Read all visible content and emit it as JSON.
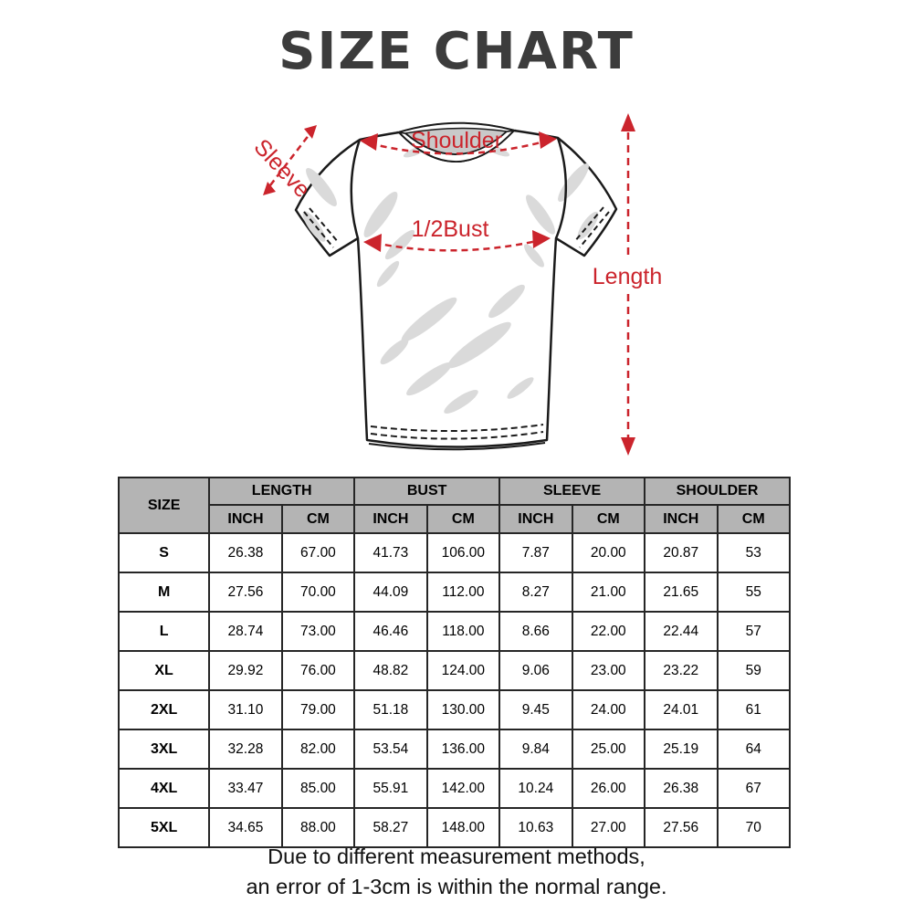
{
  "title": "SIZE CHART",
  "diagram": {
    "sleeve_label": "Sleeve",
    "shoulder_label": "Shoulder",
    "bust_label": "1/2Bust",
    "length_label": "Length"
  },
  "table": {
    "size_header": "SIZE",
    "group_headers": [
      "LENGTH",
      "BUST",
      "SLEEVE",
      "SHOULDER"
    ],
    "unit_headers": [
      "INCH",
      "CM",
      "INCH",
      "CM",
      "INCH",
      "CM",
      "INCH",
      "CM"
    ],
    "rows": [
      {
        "size": "S",
        "values": [
          "26.38",
          "67.00",
          "41.73",
          "106.00",
          "7.87",
          "20.00",
          "20.87",
          "53"
        ]
      },
      {
        "size": "M",
        "values": [
          "27.56",
          "70.00",
          "44.09",
          "112.00",
          "8.27",
          "21.00",
          "21.65",
          "55"
        ]
      },
      {
        "size": "L",
        "values": [
          "28.74",
          "73.00",
          "46.46",
          "118.00",
          "8.66",
          "22.00",
          "22.44",
          "57"
        ]
      },
      {
        "size": "XL",
        "values": [
          "29.92",
          "76.00",
          "48.82",
          "124.00",
          "9.06",
          "23.00",
          "23.22",
          "59"
        ]
      },
      {
        "size": "2XL",
        "values": [
          "31.10",
          "79.00",
          "51.18",
          "130.00",
          "9.45",
          "24.00",
          "24.01",
          "61"
        ]
      },
      {
        "size": "3XL",
        "values": [
          "32.28",
          "82.00",
          "53.54",
          "136.00",
          "9.84",
          "25.00",
          "25.19",
          "64"
        ]
      },
      {
        "size": "4XL",
        "values": [
          "33.47",
          "85.00",
          "55.91",
          "142.00",
          "10.24",
          "26.00",
          "26.38",
          "67"
        ]
      },
      {
        "size": "5XL",
        "values": [
          "34.65",
          "88.00",
          "58.27",
          "148.00",
          "10.63",
          "27.00",
          "27.56",
          "70"
        ]
      }
    ]
  },
  "footer": {
    "line1": "Due to different measurement methods,",
    "line2": "an error of 1-3cm is within the normal range."
  },
  "colors": {
    "accent_red": "#cb242c",
    "header_bg": "#b4b4b4",
    "border": "#262626",
    "title_color": "#3c3c3c",
    "shade_gray": "#dadada"
  },
  "chart_data": {
    "type": "table",
    "title": "SIZE CHART",
    "columns": [
      "SIZE",
      "LENGTH INCH",
      "LENGTH CM",
      "BUST INCH",
      "BUST CM",
      "SLEEVE INCH",
      "SLEEVE CM",
      "SHOULDER INCH",
      "SHOULDER CM"
    ],
    "rows": [
      [
        "S",
        26.38,
        67.0,
        41.73,
        106.0,
        7.87,
        20.0,
        20.87,
        53
      ],
      [
        "M",
        27.56,
        70.0,
        44.09,
        112.0,
        8.27,
        21.0,
        21.65,
        55
      ],
      [
        "L",
        28.74,
        73.0,
        46.46,
        118.0,
        8.66,
        22.0,
        22.44,
        57
      ],
      [
        "XL",
        29.92,
        76.0,
        48.82,
        124.0,
        9.06,
        23.0,
        23.22,
        59
      ],
      [
        "2XL",
        31.1,
        79.0,
        51.18,
        130.0,
        9.45,
        24.0,
        24.01,
        61
      ],
      [
        "3XL",
        32.28,
        82.0,
        53.54,
        136.0,
        9.84,
        25.0,
        25.19,
        64
      ],
      [
        "4XL",
        33.47,
        85.0,
        55.91,
        142.0,
        10.24,
        26.0,
        26.38,
        67
      ],
      [
        "5XL",
        34.65,
        88.0,
        58.27,
        148.0,
        10.63,
        27.0,
        27.56,
        70
      ]
    ],
    "measurement_annotations": [
      "Sleeve",
      "Shoulder",
      "1/2Bust",
      "Length"
    ],
    "notes": "Due to different measurement methods, an error of 1-3cm is within the normal range."
  }
}
